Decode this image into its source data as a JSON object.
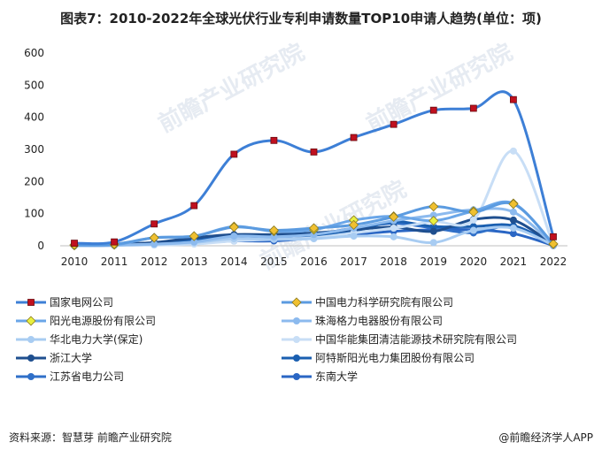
{
  "title": "图表7：2010-2022年全球光伏行业专利申请数量TOP10申请人趋势(单位：项)",
  "source": "资料来源：智慧芽 前瞻产业研究院",
  "brand": "@前瞻经济学人APP",
  "watermark": "前瞻产业研究院",
  "chart_data": {
    "type": "line",
    "title": "图表7：2010-2022年全球光伏行业专利申请数量TOP10申请人趋势(单位：项)",
    "xlabel": "",
    "ylabel": "",
    "x": [
      "2010",
      "2011",
      "2012",
      "2013",
      "2014",
      "2015",
      "2016",
      "2017",
      "2018",
      "2019",
      "2020",
      "2021",
      "2022"
    ],
    "ylim": [
      0,
      600
    ],
    "yticks": [
      0,
      100,
      200,
      300,
      400,
      500,
      600
    ],
    "grid": false,
    "legend": "bottom",
    "series": [
      {
        "name": "国家电网公司",
        "color": "#3d7fd6",
        "marker": "square",
        "marker_color": "#c0101f",
        "values": [
          8,
          12,
          68,
          125,
          285,
          328,
          292,
          337,
          378,
          422,
          428,
          455,
          28
        ]
      },
      {
        "name": "中国电力科学研究院有限公司",
        "color": "#5b9be0",
        "marker": "diamond",
        "marker_color": "#f0c030",
        "values": [
          3,
          5,
          25,
          30,
          58,
          48,
          55,
          65,
          90,
          122,
          105,
          130,
          6
        ]
      },
      {
        "name": "阳光电源股份有限公司",
        "color": "#6aa6e8",
        "marker": "diamond",
        "marker_color": "#e8f040",
        "values": [
          1,
          3,
          25,
          30,
          60,
          45,
          50,
          80,
          92,
          78,
          108,
          132,
          5
        ]
      },
      {
        "name": "珠海格力电器股份有限公司",
        "color": "#8cbaee",
        "marker": "circle",
        "marker_color": "#8cbaee",
        "values": [
          0,
          2,
          5,
          12,
          30,
          28,
          35,
          55,
          78,
          95,
          112,
          105,
          4
        ]
      },
      {
        "name": "华北电力大学(保定)",
        "color": "#a8ccf2",
        "marker": "circle",
        "marker_color": "#a8ccf2",
        "values": [
          2,
          2,
          5,
          10,
          22,
          20,
          22,
          30,
          28,
          10,
          48,
          55,
          2
        ]
      },
      {
        "name": "中国华能集团清洁能源技术研究院有限公司",
        "color": "#c8def6",
        "marker": "circle",
        "marker_color": "#c8def6",
        "values": [
          0,
          1,
          2,
          5,
          15,
          20,
          25,
          40,
          55,
          75,
          80,
          295,
          3
        ]
      },
      {
        "name": "浙江大学",
        "color": "#1f4f8f",
        "marker": "circle",
        "marker_color": "#1f4f8f",
        "values": [
          5,
          6,
          10,
          25,
          35,
          35,
          40,
          50,
          58,
          45,
          82,
          80,
          3
        ]
      },
      {
        "name": "阿特斯阳光电力集团股份有限公司",
        "color": "#1a5fb0",
        "marker": "circle",
        "marker_color": "#1a5fb0",
        "values": [
          2,
          3,
          8,
          20,
          28,
          25,
          30,
          45,
          75,
          60,
          60,
          62,
          2
        ]
      },
      {
        "name": "江苏省电力公司",
        "color": "#2f6fc8",
        "marker": "circle",
        "marker_color": "#2f6fc8",
        "values": [
          1,
          2,
          6,
          15,
          22,
          30,
          35,
          55,
          70,
          55,
          40,
          62,
          1
        ]
      },
      {
        "name": "东南大学",
        "color": "#2a66c4",
        "marker": "circle",
        "marker_color": "#2a66c4",
        "values": [
          0,
          1,
          4,
          8,
          15,
          15,
          25,
          35,
          45,
          50,
          50,
          38,
          1
        ]
      }
    ]
  }
}
